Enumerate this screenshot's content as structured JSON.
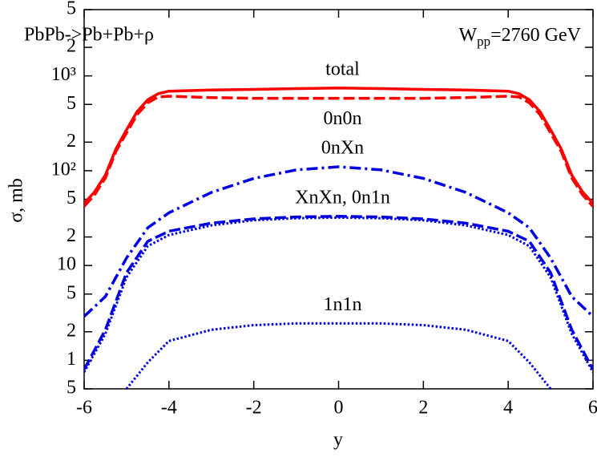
{
  "chart_data": {
    "type": "line",
    "log_y": true,
    "ylabel": "σ, mb",
    "xlabel": "y",
    "annotations": {
      "left": "PbPb->Pb+Pb+ρ",
      "right": {
        "main": "W",
        "sub": "pp",
        "rest": "=2760 GeV"
      }
    },
    "xlim": [
      -6,
      6
    ],
    "xticks": [
      -6,
      -4,
      -2,
      0,
      2,
      4,
      6
    ],
    "ylim": [
      0.5,
      5000
    ],
    "yticks": [
      {
        "value": 0.5,
        "label": "5"
      },
      1,
      2,
      5,
      10,
      {
        "value": 20,
        "label": "2"
      },
      {
        "value": 50,
        "label": "5"
      },
      {
        "value": 100,
        "label": "10²"
      },
      {
        "value": 200,
        "label": "2"
      },
      {
        "value": 500,
        "label": "5"
      },
      {
        "value": 1000,
        "label": "10³"
      },
      {
        "value": 2000,
        "label": "2"
      },
      {
        "value": 5000,
        "label": "5"
      }
    ],
    "series": [
      {
        "name": "total",
        "color": "#ff0000",
        "style": "solid",
        "label_position": "above",
        "x": [
          -6,
          -5.75,
          -5.5,
          -5.25,
          -5,
          -4.75,
          -4.5,
          -4.25,
          -4,
          -3,
          -2,
          -1,
          0,
          1,
          2,
          3,
          4,
          4.25,
          4.5,
          4.75,
          5,
          5.25,
          5.5,
          5.75,
          6
        ],
        "values": [
          45,
          60,
          90,
          170,
          270,
          420,
          560,
          650,
          690,
          710,
          720,
          735,
          745,
          735,
          720,
          710,
          690,
          650,
          560,
          420,
          270,
          170,
          90,
          60,
          45
        ]
      },
      {
        "name": "0n0n",
        "color": "#ff0000",
        "style": "dashed",
        "label_position": "below",
        "x": [
          -6,
          -5.75,
          -5.5,
          -5.25,
          -5,
          -4.75,
          -4.5,
          -4.25,
          -4,
          -3,
          -2,
          -1,
          0,
          1,
          2,
          3,
          4,
          4.25,
          4.5,
          4.75,
          5,
          5.25,
          5.5,
          5.75,
          6
        ],
        "values": [
          42,
          56,
          84,
          160,
          250,
          390,
          520,
          600,
          610,
          590,
          580,
          580,
          580,
          580,
          580,
          590,
          610,
          600,
          520,
          390,
          250,
          160,
          84,
          56,
          42
        ]
      },
      {
        "name": "0nXn",
        "color": "#0000e0",
        "style": "dashdot",
        "label_position": "above",
        "x": [
          -6,
          -5.5,
          -5,
          -4.5,
          -4,
          -3,
          -2,
          -1,
          0,
          1,
          2,
          3,
          4,
          4.5,
          5,
          5.5,
          6
        ],
        "values": [
          2.9,
          4.7,
          12,
          25,
          36,
          59,
          83,
          102,
          110,
          102,
          83,
          59,
          36,
          25,
          12,
          4.7,
          2.9
        ]
      },
      {
        "name": "XnXn, 0n1n",
        "color": "#0000e0",
        "style": "dashed",
        "label_position": "above",
        "x": [
          -6,
          -5.5,
          -5,
          -4.5,
          -4,
          -3,
          -2,
          -1,
          0,
          1,
          2,
          3,
          4,
          4.5,
          5,
          5.5,
          6
        ],
        "values": [
          0.8,
          2.1,
          8.4,
          18,
          23,
          28,
          31,
          32.5,
          33,
          32.5,
          31,
          28,
          23,
          18,
          8.4,
          2.1,
          0.8
        ]
      },
      {
        "color": "#0000e0",
        "style": "dotted",
        "x": [
          -6,
          -5.5,
          -5,
          -4.5,
          -4,
          -3,
          -2,
          -1,
          0,
          1,
          2,
          3,
          4,
          4.5,
          5,
          5.5,
          6
        ],
        "values": [
          0.75,
          1.9,
          7.5,
          16,
          21,
          26.5,
          30,
          31.5,
          32,
          31.5,
          30,
          26.5,
          21,
          16,
          7.5,
          1.9,
          0.75
        ]
      },
      {
        "name": "1n1n",
        "color": "#0000e0",
        "style": "dotted",
        "label_position": "above",
        "x": [
          -5,
          -4.5,
          -4,
          -3,
          -2,
          -1,
          0,
          1,
          2,
          3,
          4,
          4.5,
          5
        ],
        "values": [
          0.5,
          0.95,
          1.6,
          2.1,
          2.35,
          2.45,
          2.45,
          2.45,
          2.35,
          2.1,
          1.6,
          0.95,
          0.5
        ]
      }
    ]
  }
}
